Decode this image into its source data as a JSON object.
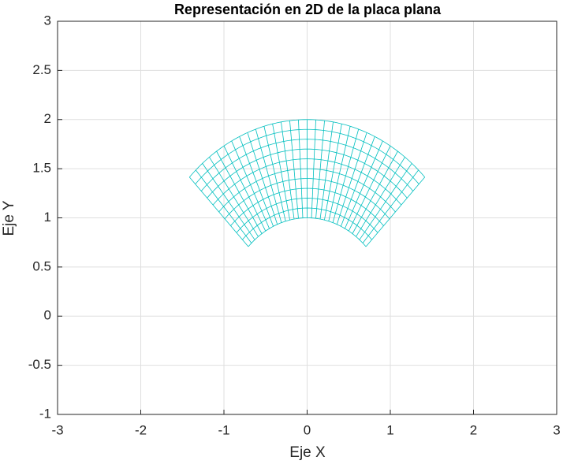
{
  "chart_data": {
    "type": "mesh",
    "title": "Representación en 2D de la placa plana",
    "xlabel": "Eje X",
    "ylabel": "Eje Y",
    "r": [
      1,
      1.1,
      1.2,
      1.3,
      1.4,
      1.5,
      1.6,
      1.7,
      1.8,
      1.9,
      2
    ],
    "theta": [
      45,
      48,
      51,
      54,
      57,
      60,
      63,
      66,
      69,
      72,
      75,
      78,
      81,
      84,
      87,
      90,
      93,
      96,
      99,
      102,
      105,
      108,
      111,
      114,
      117,
      120,
      123,
      126,
      129,
      132,
      135
    ],
    "color": "#00bfbf",
    "xlim": [
      -3,
      3
    ],
    "ylim": [
      -1,
      3
    ],
    "xticks": [
      -3,
      -2,
      -1,
      0,
      1,
      2,
      3
    ],
    "yticks": [
      -1,
      -0.5,
      0,
      0.5,
      1,
      1.5,
      2,
      2.5,
      3
    ],
    "grid": true
  }
}
